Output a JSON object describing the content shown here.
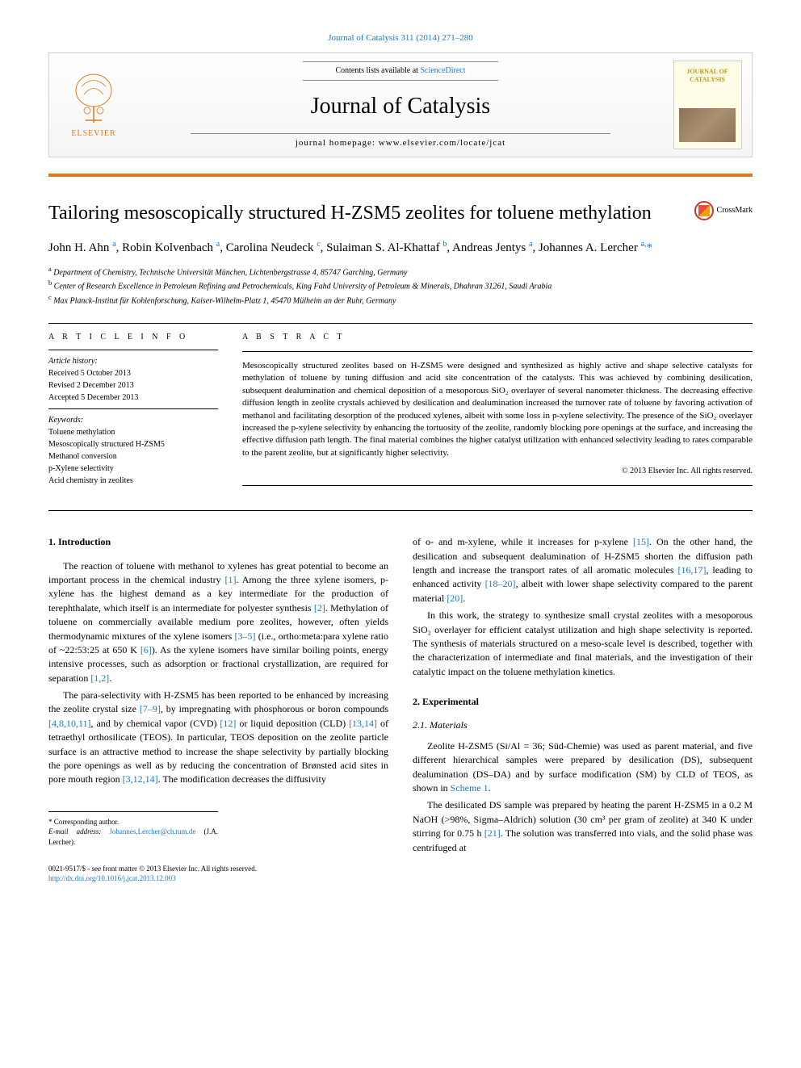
{
  "header": {
    "journal_ref": "Journal of Catalysis 311 (2014) 271–280",
    "contents_prefix": "Contents lists available at ",
    "contents_link": "ScienceDirect",
    "journal_name": "Journal of Catalysis",
    "homepage_prefix": "journal homepage: ",
    "homepage_url": "www.elsevier.com/locate/jcat",
    "publisher": "ELSEVIER",
    "cover_title": "JOURNAL OF CATALYSIS"
  },
  "crossmark": "CrossMark",
  "title": "Tailoring mesoscopically structured H-ZSM5 zeolites for toluene methylation",
  "authors_html": "John H. Ahn <sup>a</sup>, Robin Kolvenbach <sup>a</sup>, Carolina Neudeck <sup>c</sup>, Sulaiman S. Al-Khattaf <sup>b</sup>, Andreas Jentys <sup>a</sup>, Johannes A. Lercher <sup>a,</sup><a>*</a>",
  "affiliations": {
    "a": "Department of Chemistry, Technische Universität München, Lichtenbergstrasse 4, 85747 Garching, Germany",
    "b": "Center of Research Excellence in Petroleum Refining and Petrochemicals, King Fahd University of Petroleum & Minerals, Dhahran 31261, Saudi Arabia",
    "c": "Max Planck-Institut für Kohlenforschung, Kaiser-Wilhelm-Platz 1, 45470 Mülheim an der Ruhr, Germany"
  },
  "article_info": {
    "heading": "A R T I C L E   I N F O",
    "history_label": "Article history:",
    "received": "Received 5 October 2013",
    "revised": "Revised 2 December 2013",
    "accepted": "Accepted 5 December 2013",
    "keywords_label": "Keywords:",
    "keywords": [
      "Toluene methylation",
      "Mesoscopically structured H-ZSM5",
      "Methanol conversion",
      "p-Xylene selectivity",
      "Acid chemistry in zeolites"
    ]
  },
  "abstract": {
    "heading": "A B S T R A C T",
    "text": "Mesoscopically structured zeolites based on H-ZSM5 were designed and synthesized as highly active and shape selective catalysts for methylation of toluene by tuning diffusion and acid site concentration of the catalysts. This was achieved by combining desilication, subsequent dealumination and chemical deposition of a mesoporous SiO₂ overlayer of several nanometer thickness. The decreasing effective diffusion length in zeolite crystals achieved by desilication and dealumination increased the turnover rate of toluene by favoring activation of methanol and facilitating desorption of the produced xylenes, albeit with some loss in p-xylene selectivity. The presence of the SiO₂ overlayer increased the p-xylene selectivity by enhancing the tortuosity of the zeolite, randomly blocking pore openings at the surface, and increasing the effective diffusion path length. The final material combines the higher catalyst utilization with enhanced selectivity leading to rates comparable to the parent zeolite, but at significantly higher selectivity.",
    "copyright": "© 2013 Elsevier Inc. All rights reserved."
  },
  "body": {
    "section1_heading": "1. Introduction",
    "p1": "The reaction of toluene with methanol to xylenes has great potential to become an important process in the chemical industry [1]. Among the three xylene isomers, p-xylene has the highest demand as a key intermediate for the production of terephthalate, which itself is an intermediate for polyester synthesis [2]. Methylation of toluene on commercially available medium pore zeolites, however, often yields thermodynamic mixtures of the xylene isomers [3–5] (i.e., ortho:meta:para xylene ratio of ~22:53:25 at 650 K [6]). As the xylene isomers have similar boiling points, energy intensive processes, such as adsorption or fractional crystallization, are required for separation [1,2].",
    "p2": "The para-selectivity with H-ZSM5 has been reported to be enhanced by increasing the zeolite crystal size [7–9], by impregnating with phosphorous or boron compounds [4,8,10,11], and by chemical vapor (CVD) [12] or liquid deposition (CLD) [13,14] of tetraethyl orthosilicate (TEOS). In particular, TEOS deposition on the zeolite particle surface is an attractive method to increase the shape selectivity by partially blocking the pore openings as well as by reducing the concentration of Brønsted acid sites in pore mouth region [3,12,14]. The modification decreases the diffusivity",
    "p3": "of o- and m-xylene, while it increases for p-xylene [15]. On the other hand, the desilication and subsequent dealumination of H-ZSM5 shorten the diffusion path length and increase the transport rates of all aromatic molecules [16,17], leading to enhanced activity [18–20], albeit with lower shape selectivity compared to the parent material [20].",
    "p4": "In this work, the strategy to synthesize small crystal zeolites with a mesoporous SiO₂ overlayer for efficient catalyst utilization and high shape selectivity is reported. The synthesis of materials structured on a meso-scale level is described, together with the characterization of intermediate and final materials, and the investigation of their catalytic impact on the toluene methylation kinetics.",
    "section2_heading": "2. Experimental",
    "section21_heading": "2.1. Materials",
    "p5": "Zeolite H-ZSM5 (Si/Al = 36; Süd-Chemie) was used as parent material, and five different hierarchical samples were prepared by desilication (DS), subsequent dealumination (DS–DA) and by surface modification (SM) by CLD of TEOS, as shown in Scheme 1.",
    "p6": "The desilicated DS sample was prepared by heating the parent H-ZSM5 in a 0.2 M NaOH (>98%, Sigma–Aldrich) solution (30 cm³ per gram of zeolite) at 340 K under stirring for 0.75 h [21]. The solution was transferred into vials, and the solid phase was centrifuged at"
  },
  "footer": {
    "corresponding": "* Corresponding author.",
    "email_label": "E-mail address: ",
    "email": "Johannes.Lercher@ch.tum.de",
    "email_suffix": " (J.A. Lercher).",
    "issn": "0021-9517/$ - see front matter © 2013 Elsevier Inc. All rights reserved.",
    "doi": "http://dx.doi.org/10.1016/j.jcat.2013.12.003"
  },
  "colors": {
    "link": "#1976d2",
    "orange": "#e67817",
    "text": "#000000",
    "cover_gold": "#c49a00"
  }
}
